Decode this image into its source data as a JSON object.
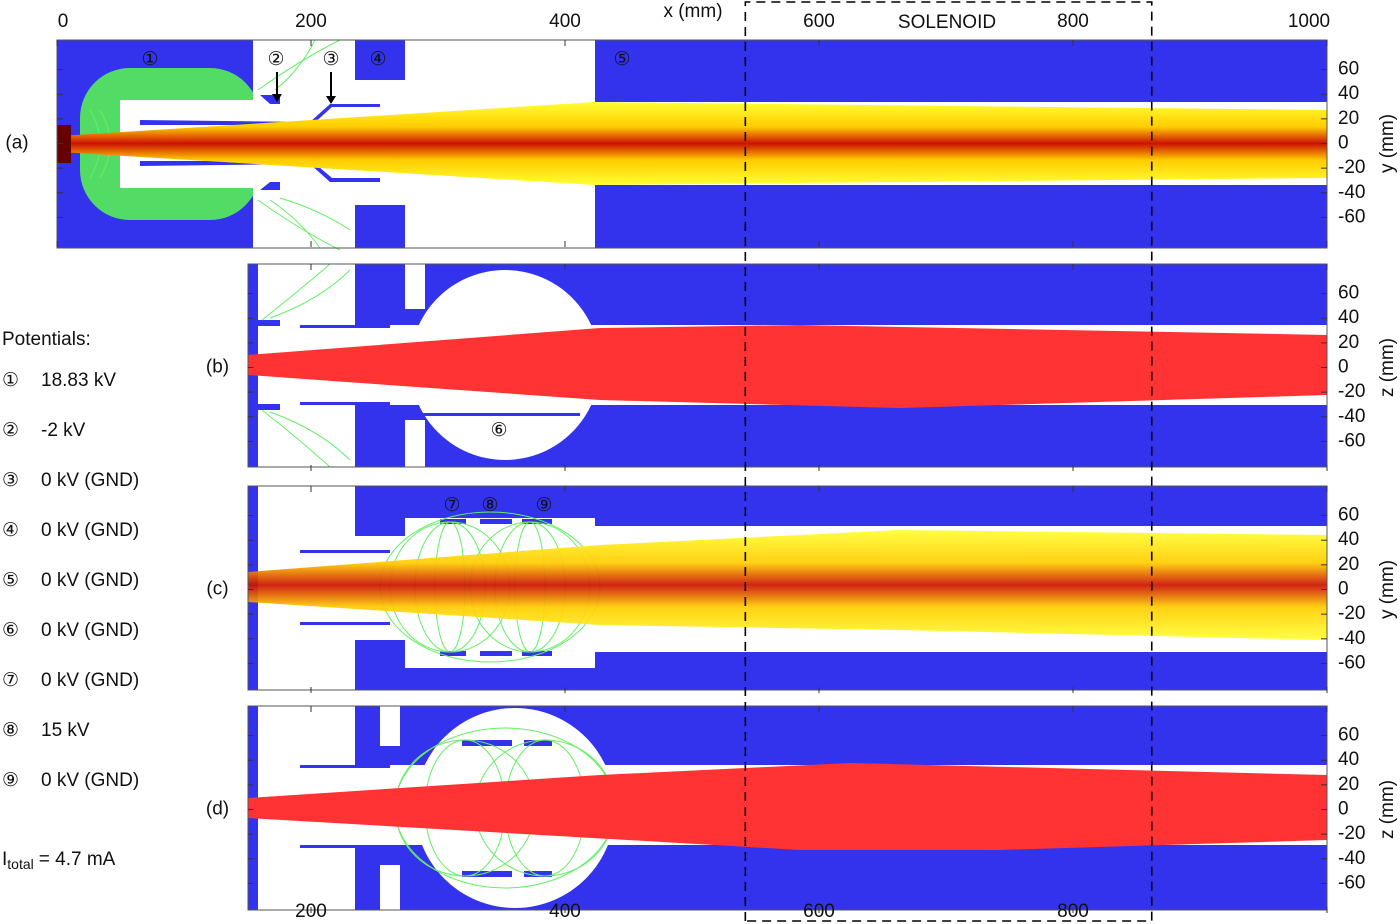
{
  "x_axis": {
    "label": "x (mm)",
    "xlim": [
      0,
      1000
    ],
    "xticks": [
      0,
      200,
      400,
      600,
      800,
      1000
    ]
  },
  "solenoid": {
    "label": "SOLENOID",
    "range": [
      542,
      862
    ]
  },
  "panels": [
    {
      "label": "(a)",
      "y_label": "y (mm)",
      "xlim": [
        0,
        1000
      ],
      "ylim": [
        -84,
        84
      ],
      "yticks": [
        60,
        40,
        20,
        0,
        -20,
        -40,
        -60
      ]
    },
    {
      "label": "(b)",
      "y_label": "z (mm)",
      "xlim": [
        150,
        1000
      ],
      "ylim": [
        -84,
        84
      ],
      "yticks": [
        60,
        40,
        20,
        0,
        -20,
        -40,
        -60
      ]
    },
    {
      "label": "(c)",
      "y_label": "y (mm)",
      "xlim": [
        150,
        1000
      ],
      "ylim": [
        -84,
        84
      ],
      "yticks": [
        60,
        40,
        20,
        0,
        -20,
        -40,
        -60
      ]
    },
    {
      "label": "(d)",
      "y_label": "z (mm)",
      "xlim": [
        150,
        1000
      ],
      "ylim": [
        -84,
        84
      ],
      "yticks": [
        60,
        40,
        20,
        0,
        -20,
        -40,
        -60
      ]
    }
  ],
  "electrode_labels": [
    "①",
    "②",
    "③",
    "④",
    "⑤",
    "⑥",
    "⑦",
    "⑧",
    "⑨"
  ],
  "potentials": {
    "title": "Potentials:",
    "items": [
      {
        "marker": "①",
        "text": "18.83 kV"
      },
      {
        "marker": "②",
        "text": "-2 kV"
      },
      {
        "marker": "③",
        "text": "0 kV (GND)"
      },
      {
        "marker": "④",
        "text": "0 kV (GND)"
      },
      {
        "marker": "⑤",
        "text": "0 kV (GND)"
      },
      {
        "marker": "⑥",
        "text": "0 kV (GND)"
      },
      {
        "marker": "⑦",
        "text": "0 kV (GND)"
      },
      {
        "marker": "⑧",
        "text": "15 kV"
      },
      {
        "marker": "⑨",
        "text": "0 kV (GND)"
      }
    ]
  },
  "current": {
    "symbol": "I",
    "subscript": "total",
    "text": "= 4.7 mA"
  }
}
